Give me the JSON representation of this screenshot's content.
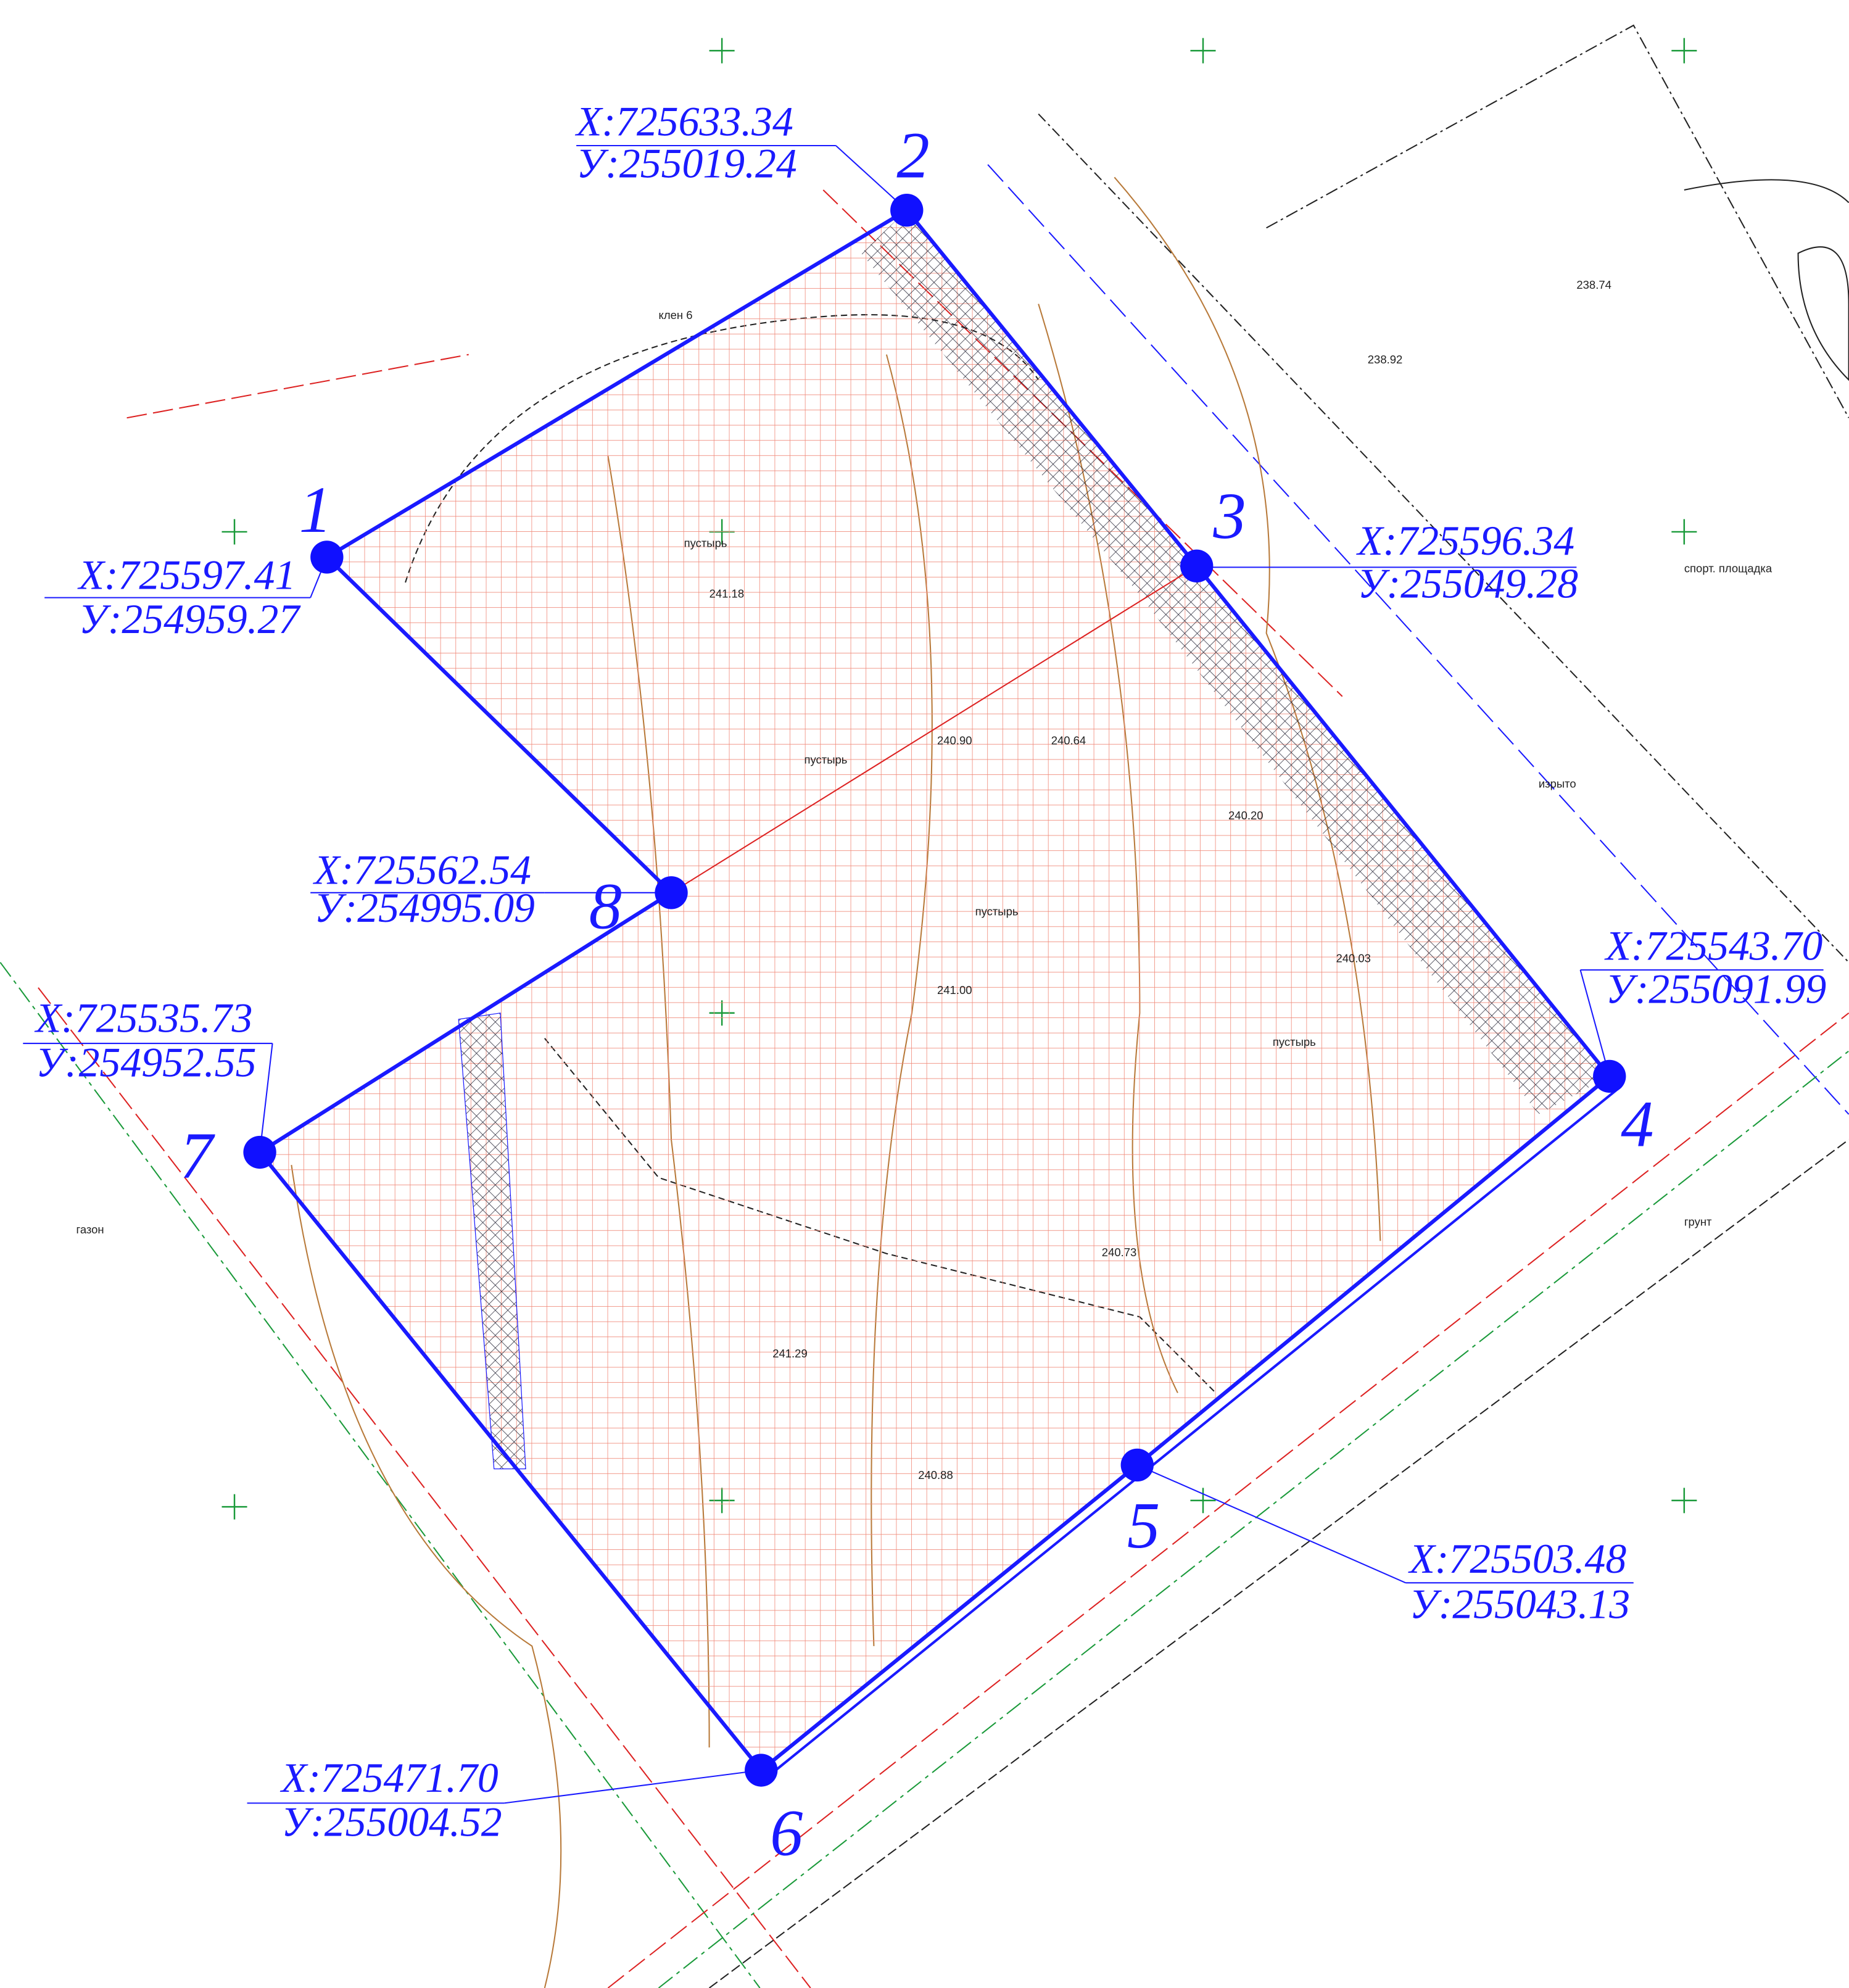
{
  "points": [
    {
      "number": "1",
      "x": "X:725597.41",
      "y": "У:254959.27"
    },
    {
      "number": "2",
      "x": "X:725633.34",
      "y": "У:255019.24"
    },
    {
      "number": "3",
      "x": "X:725596.34",
      "y": "У:255049.28"
    },
    {
      "number": "4",
      "x": "X:725543.70",
      "y": "У:255091.99"
    },
    {
      "number": "5",
      "x": "X:725503.48",
      "y": "У:255043.13"
    },
    {
      "number": "6",
      "x": "X:725471.70",
      "y": "У:255004.52"
    },
    {
      "number": "7",
      "x": "X:725535.73",
      "y": "У:254952.55"
    },
    {
      "number": "8",
      "x": "X:725562.54",
      "y": "У:254995.09"
    }
  ],
  "labels": [
    "пустырь",
    "пустырь",
    "пустырь",
    "пустырь",
    "спорт. площадка",
    "газон",
    "изрыто",
    "грунт",
    "клен 6",
    "241.18",
    "240.64",
    "240.20",
    "240.03",
    "241.00",
    "240.88",
    "238.74",
    "238.92",
    "240.90",
    "241.29",
    "240.73"
  ]
}
